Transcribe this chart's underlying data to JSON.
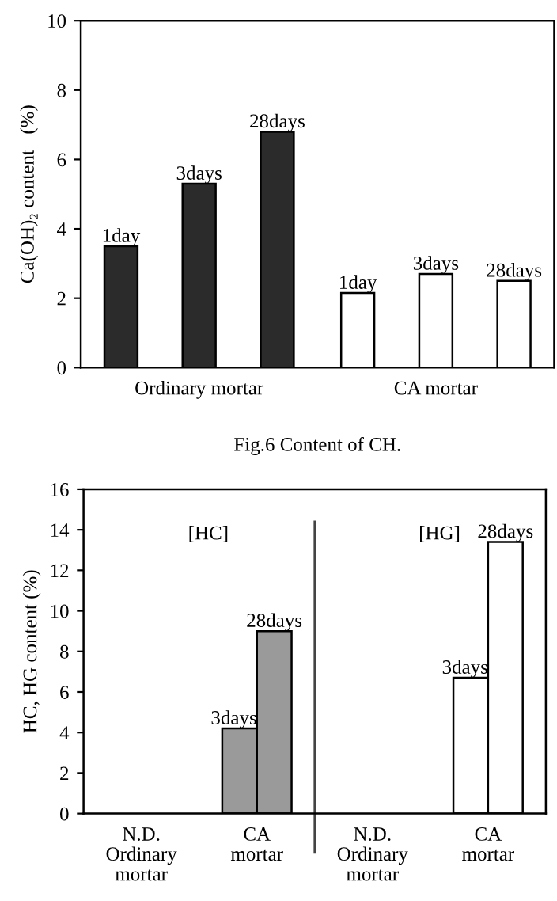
{
  "chart_data": [
    {
      "type": "bar",
      "title": "Fig.6 Content of CH.",
      "ylabel": "Ca(OH)₂ content　(%)",
      "categories": [
        "Ordinary mortar",
        "CA mortar"
      ],
      "series": [
        {
          "name": "1day",
          "colors": [
            "#2b2b2b",
            "#ffffff"
          ],
          "values": [
            3.5,
            2.15
          ]
        },
        {
          "name": "3days",
          "colors": [
            "#2b2b2b",
            "#ffffff"
          ],
          "values": [
            5.3,
            2.7
          ]
        },
        {
          "name": "28days",
          "colors": [
            "#2b2b2b",
            "#ffffff"
          ],
          "values": [
            6.8,
            2.5
          ]
        }
      ],
      "ylim": [
        0,
        10
      ],
      "yticks": [
        0,
        2,
        4,
        6,
        8,
        10
      ],
      "grid": false,
      "legend": false
    },
    {
      "type": "bar",
      "ylabel": "HC, HG content (%)",
      "categories": [
        "N.D.\nOrdinary\nmortar",
        "CA\nmortar",
        "N.D.\nOrdinary\nmortar",
        "CA\nmortar"
      ],
      "series": [
        {
          "name": "3days",
          "colors": [
            "#9a9a9a",
            "#9a9a9a",
            "#ffffff",
            "#ffffff"
          ],
          "values": [
            null,
            4.2,
            null,
            6.7
          ]
        },
        {
          "name": "28days",
          "colors": [
            "#9a9a9a",
            "#9a9a9a",
            "#ffffff",
            "#ffffff"
          ],
          "values": [
            null,
            9.0,
            null,
            13.4
          ]
        }
      ],
      "annotations": [
        "[HC]",
        "[HG]"
      ],
      "ylim": [
        0,
        16
      ],
      "yticks": [
        0,
        2,
        4,
        6,
        8,
        10,
        12,
        14,
        16
      ],
      "grid": false,
      "legend": false
    }
  ]
}
